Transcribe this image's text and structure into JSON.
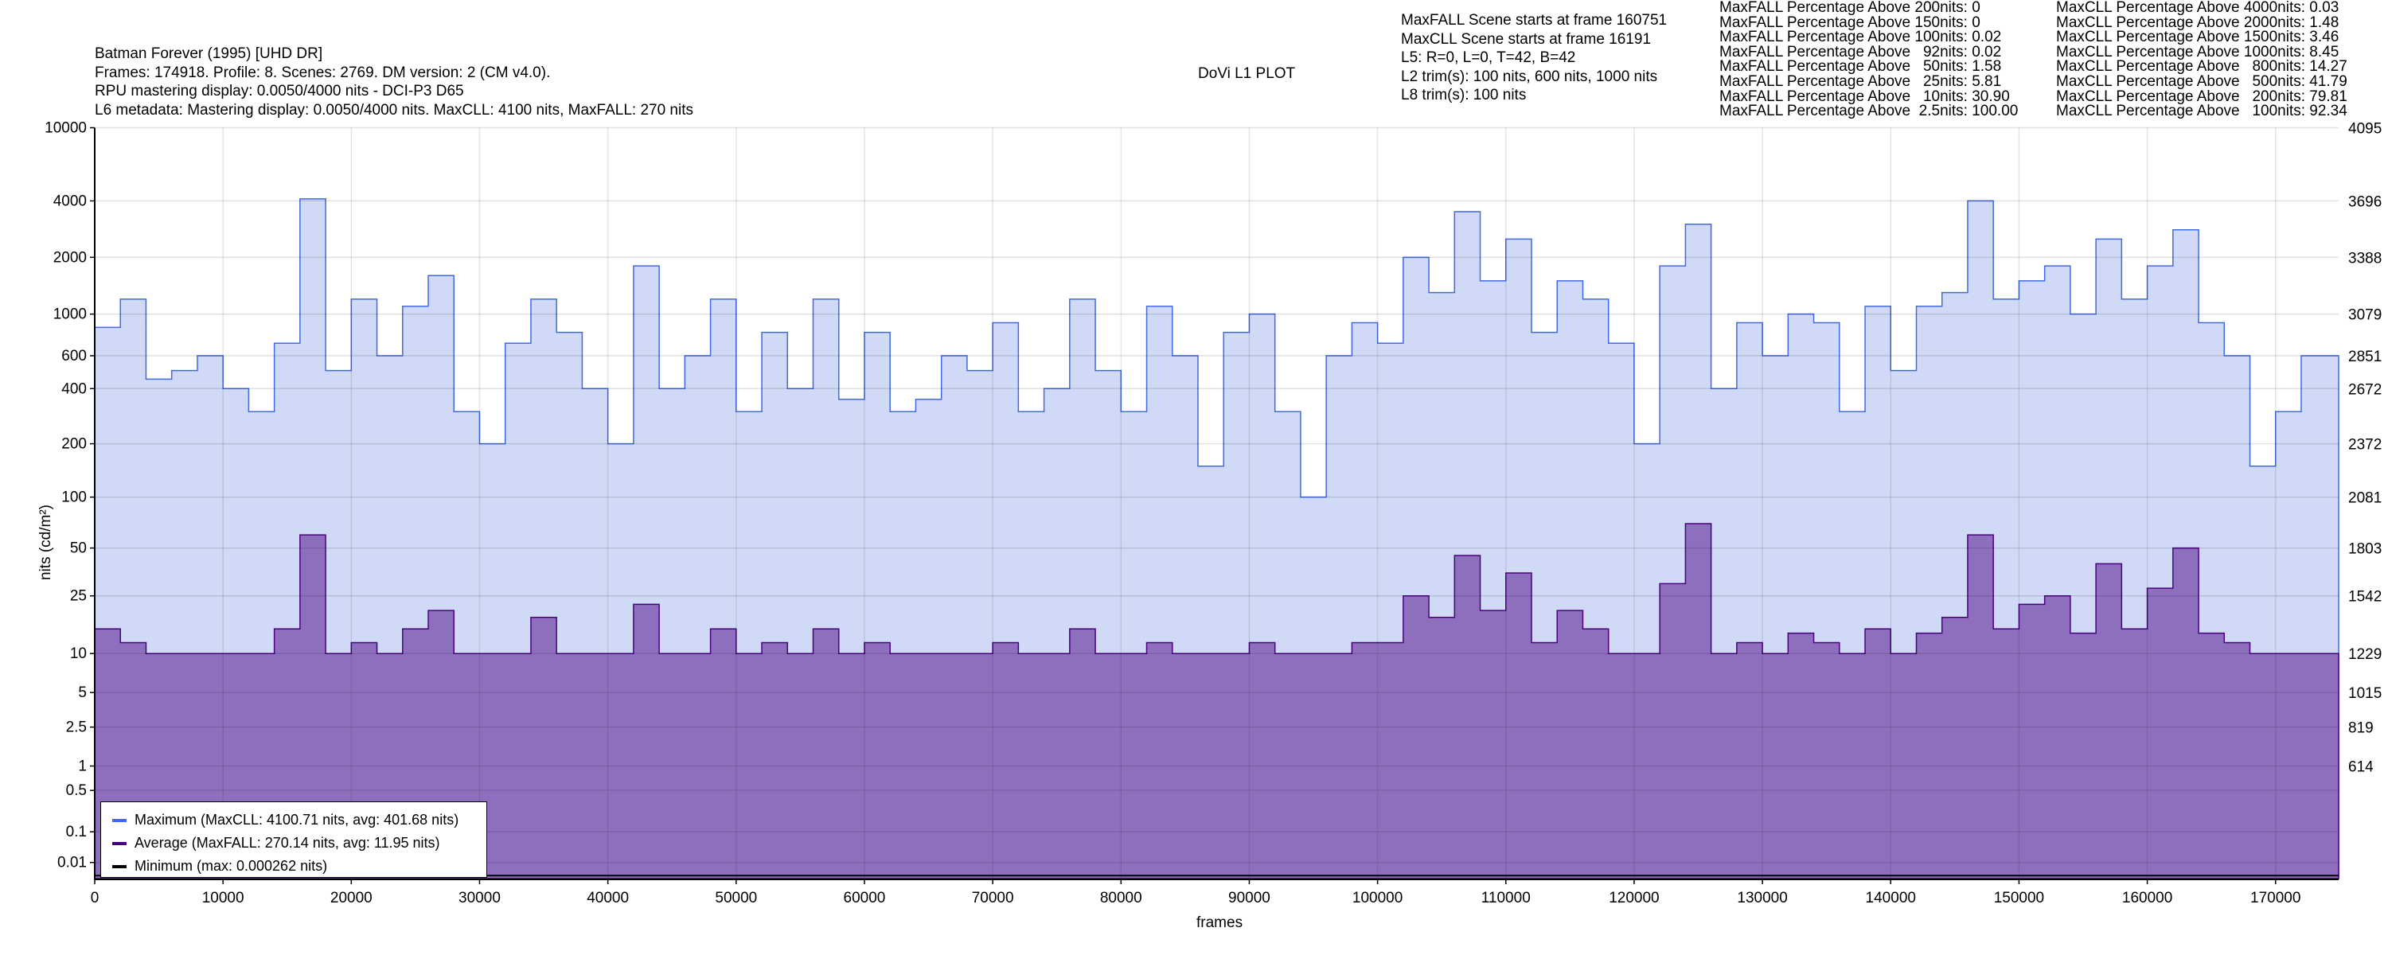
{
  "header": {
    "title": "Batman Forever (1995) [UHD DR]",
    "line1": "Frames: 174918. Profile: 8. Scenes: 2769. DM version: 2 (CM v4.0).",
    "line2": "RPU mastering display: 0.0050/4000 nits - DCI-P3 D65",
    "line3": "L6 metadata: Mastering display: 0.0050/4000 nits. MaxCLL: 4100 nits, MaxFALL: 270 nits",
    "plot_title": "DoVi L1 PLOT"
  },
  "scene_info": [
    "MaxFALL Scene starts at frame 160751",
    "MaxCLL Scene starts at frame 16191",
    "L5: R=0, L=0, T=42, B=42",
    "L2 trim(s): 100 nits, 600 nits, 1000 nits",
    "L8 trim(s): 100 nits"
  ],
  "maxfall_stats": [
    "MaxFALL Percentage Above 200nits: 0",
    "MaxFALL Percentage Above 150nits: 0",
    "MaxFALL Percentage Above 100nits: 0.02",
    "MaxFALL Percentage Above   92nits: 0.02",
    "MaxFALL Percentage Above   50nits: 1.58",
    "MaxFALL Percentage Above   25nits: 5.81",
    "MaxFALL Percentage Above   10nits: 30.90",
    "MaxFALL Percentage Above  2.5nits: 100.00"
  ],
  "maxcll_stats": [
    "MaxCLL Percentage Above 4000nits: 0.03",
    "MaxCLL Percentage Above 2000nits: 1.48",
    "MaxCLL Percentage Above 1500nits: 3.46",
    "MaxCLL Percentage Above 1000nits: 8.45",
    "MaxCLL Percentage Above   800nits: 14.27",
    "MaxCLL Percentage Above   500nits: 41.79",
    "MaxCLL Percentage Above   200nits: 79.81",
    "MaxCLL Percentage Above   100nits: 92.34"
  ],
  "chart_data": {
    "type": "area",
    "xlabel": "frames",
    "ylabel": "nits (cd/m²)",
    "xlim": [
      0,
      174918
    ],
    "y_scale": "PQ",
    "ylim": [
      0,
      10000
    ],
    "grid": true,
    "legend_placement": "bottom-left",
    "x_ticks": [
      0,
      10000,
      20000,
      30000,
      40000,
      50000,
      60000,
      70000,
      80000,
      90000,
      100000,
      110000,
      120000,
      130000,
      140000,
      150000,
      160000,
      170000
    ],
    "y_ticks_left": [
      "10000",
      "4000",
      "2000",
      "1000",
      "600",
      "400",
      "200",
      "100",
      "50",
      "25",
      "10",
      "5",
      "2.5",
      "1",
      "0.5",
      "0.1",
      "0.01"
    ],
    "y_ticks_right": [
      {
        "nits": 10000,
        "label": "4095"
      },
      {
        "nits": 4000,
        "label": "3696"
      },
      {
        "nits": 2000,
        "label": "3388"
      },
      {
        "nits": 1000,
        "label": "3079"
      },
      {
        "nits": 600,
        "label": "2851"
      },
      {
        "nits": 400,
        "label": "2672"
      },
      {
        "nits": 200,
        "label": "2372"
      },
      {
        "nits": 100,
        "label": "2081"
      },
      {
        "nits": 50,
        "label": "1803"
      },
      {
        "nits": 25,
        "label": "1542"
      },
      {
        "nits": 10,
        "label": "1229"
      },
      {
        "nits": 5,
        "label": "1015"
      },
      {
        "nits": 2.5,
        "label": "819"
      },
      {
        "nits": 1,
        "label": "614"
      }
    ],
    "frame_step": 2000,
    "series": [
      {
        "name": "Maximum (MaxCLL: 4100.71 nits, avg: 401.68 nits)",
        "color": "#4169e1",
        "fill": "#d0d9f6",
        "values": [
          850,
          1200,
          450,
          500,
          600,
          400,
          300,
          700,
          4100,
          500,
          1200,
          600,
          1100,
          1600,
          300,
          200,
          700,
          1200,
          800,
          400,
          200,
          1800,
          400,
          600,
          1200,
          300,
          800,
          400,
          1200,
          350,
          800,
          300,
          350,
          600,
          500,
          900,
          300,
          400,
          1200,
          500,
          300,
          1100,
          600,
          150,
          800,
          1000,
          300,
          100,
          600,
          900,
          700,
          2000,
          1300,
          3500,
          1500,
          2500,
          800,
          1500,
          1200,
          700,
          200,
          1800,
          3000,
          400,
          900,
          600,
          1000,
          900,
          300,
          1100,
          500,
          1100,
          1300,
          4000,
          1200,
          1500,
          1800,
          1000,
          2500,
          1200,
          1800,
          2800,
          900,
          600,
          150,
          300,
          600,
          600
        ]
      },
      {
        "name": "Average (MaxFALL: 270.14 nits, avg: 11.95 nits)",
        "color": "#4b0082",
        "fill": "#8e6fbd",
        "values": [
          15,
          12,
          10,
          10,
          10,
          10,
          10,
          15,
          60,
          10,
          12,
          10,
          15,
          20,
          10,
          10,
          10,
          18,
          10,
          10,
          10,
          22,
          10,
          10,
          15,
          10,
          12,
          10,
          15,
          10,
          12,
          10,
          10,
          10,
          10,
          12,
          10,
          10,
          15,
          10,
          10,
          12,
          10,
          10,
          10,
          12,
          10,
          10,
          10,
          12,
          12,
          25,
          18,
          45,
          20,
          35,
          12,
          20,
          15,
          10,
          10,
          30,
          70,
          10,
          12,
          10,
          14,
          12,
          10,
          15,
          10,
          14,
          18,
          60,
          15,
          22,
          25,
          14,
          40,
          15,
          28,
          50,
          14,
          12,
          10,
          10,
          10,
          10
        ]
      },
      {
        "name": "Minimum (max: 0.000262 nits)",
        "color": "#000000",
        "value": 0.000262
      }
    ]
  }
}
